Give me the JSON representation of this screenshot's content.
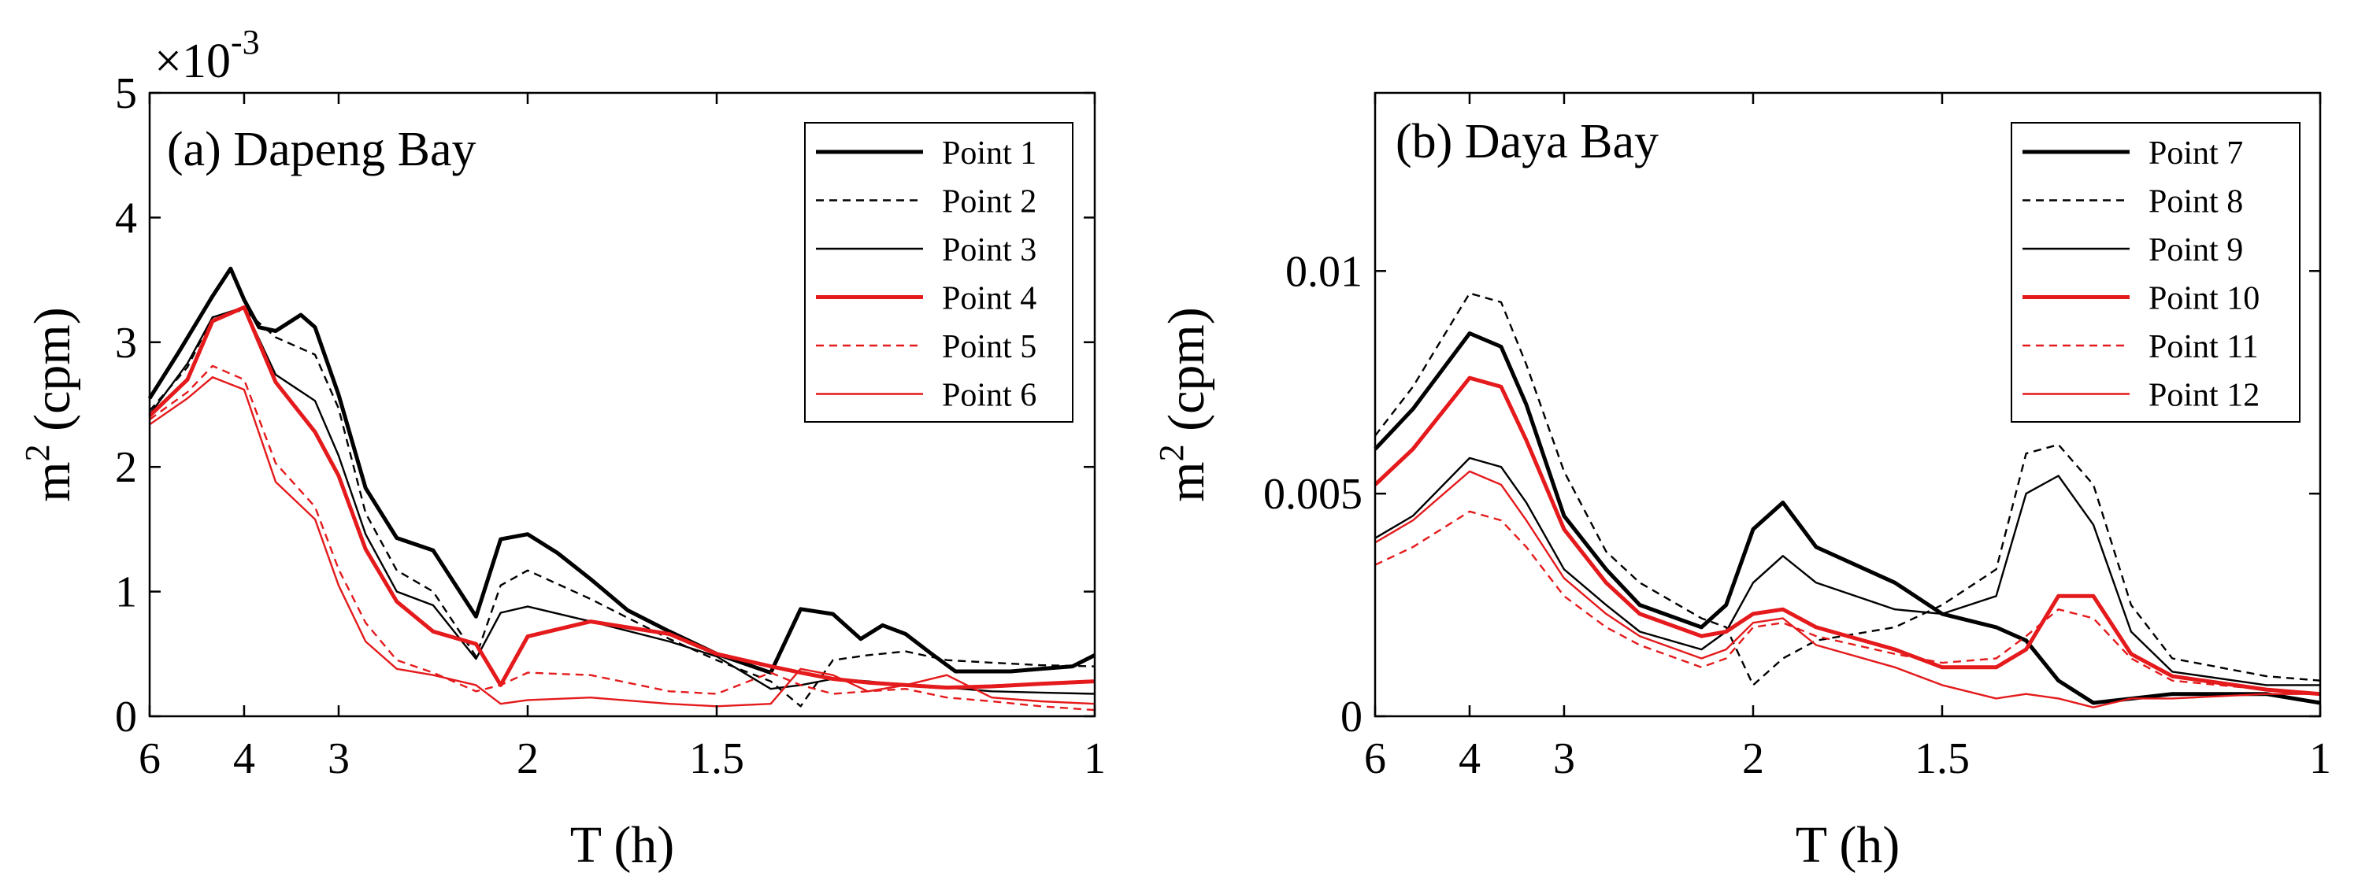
{
  "figure": {
    "background": "#ffffff"
  },
  "chart_data": [
    {
      "type": "line",
      "title": "(a) Dapeng Bay",
      "xlabel": "T (h)",
      "ylabel_base": "m",
      "ylabel_sup": "2",
      "ylabel_unit": " (cpm)",
      "xscale": "frequency (1/T)",
      "xlim_frequency_per_h": [
        0.1667,
        1.0
      ],
      "xticks": [
        {
          "period_h": 6,
          "label": "6"
        },
        {
          "period_h": 4,
          "label": "4"
        },
        {
          "period_h": 3,
          "label": "3"
        },
        {
          "period_h": 2,
          "label": "2"
        },
        {
          "period_h": 1.5,
          "label": "1.5"
        },
        {
          "period_h": 1,
          "label": "1"
        }
      ],
      "ylim": [
        0,
        0.005
      ],
      "yticks": [
        {
          "value": 0,
          "label": "0"
        },
        {
          "value": 0.001,
          "label": "1"
        },
        {
          "value": 0.002,
          "label": "2"
        },
        {
          "value": 0.003,
          "label": "3"
        },
        {
          "value": 0.004,
          "label": "4"
        },
        {
          "value": 0.005,
          "label": "5"
        }
      ],
      "y_multiplier_base": "×10",
      "y_multiplier_exp": "-3",
      "legend_position": "top-right",
      "series": [
        {
          "name": "Point 1",
          "color": "#000000",
          "style": "solid",
          "weight": "thick",
          "x": [
            0.1667,
            0.1923,
            0.2222,
            0.2381,
            0.25,
            0.2632,
            0.2778,
            0.3,
            0.3125,
            0.3333,
            0.3571,
            0.3846,
            0.4167,
            0.4545,
            0.4762,
            0.5,
            0.5263,
            0.5556,
            0.5882,
            0.625,
            0.6667,
            0.7143,
            0.7407,
            0.7692,
            0.7937,
            0.813,
            0.8333,
            0.8547,
            0.8772,
            0.9009,
            0.9259,
            0.9524,
            0.9804,
            1.0
          ],
          "y": [
            0.00255,
            0.00292,
            0.00337,
            0.00359,
            0.00334,
            0.00312,
            0.00309,
            0.00322,
            0.00312,
            0.00258,
            0.00183,
            0.00143,
            0.00133,
            0.0008,
            0.00142,
            0.00146,
            0.00131,
            0.0011,
            0.00085,
            0.00068,
            0.0005,
            0.00035,
            0.00086,
            0.00082,
            0.00062,
            0.00073,
            0.00066,
            0.00051,
            0.00036,
            0.00036,
            0.00036,
            0.00038,
            0.0004,
            0.00049
          ]
        },
        {
          "name": "Point 2",
          "color": "#000000",
          "style": "dashed",
          "weight": "thin",
          "x": [
            0.1667,
            0.2,
            0.2222,
            0.25,
            0.2778,
            0.3125,
            0.3333,
            0.3571,
            0.3846,
            0.4167,
            0.4545,
            0.4762,
            0.5,
            0.5556,
            0.625,
            0.6667,
            0.7143,
            0.7407,
            0.7692,
            0.8,
            0.8333,
            0.8696,
            0.9091,
            0.9524,
            1.0
          ],
          "y": [
            0.00245,
            0.0028,
            0.0032,
            0.00326,
            0.00304,
            0.0029,
            0.00247,
            0.00163,
            0.00117,
            0.001,
            0.00048,
            0.00105,
            0.00117,
            0.00094,
            0.00062,
            0.00045,
            0.00028,
            8e-05,
            0.00045,
            0.00049,
            0.00052,
            0.00045,
            0.00043,
            0.00041,
            0.0004
          ]
        },
        {
          "name": "Point 3",
          "color": "#000000",
          "style": "solid",
          "weight": "thin",
          "x": [
            0.1667,
            0.2,
            0.2222,
            0.25,
            0.2778,
            0.3125,
            0.3333,
            0.3571,
            0.3846,
            0.4167,
            0.4545,
            0.4762,
            0.5,
            0.5556,
            0.625,
            0.6667,
            0.7143,
            0.7407,
            0.7692,
            0.8,
            0.8333,
            0.8696,
            0.9091,
            0.9524,
            1.0
          ],
          "y": [
            0.00242,
            0.00283,
            0.0032,
            0.00328,
            0.00274,
            0.00253,
            0.00209,
            0.00146,
            0.001,
            0.00089,
            0.00046,
            0.00083,
            0.00088,
            0.00076,
            0.0006,
            0.00048,
            0.00022,
            0.00025,
            0.0003,
            0.00028,
            0.00025,
            0.00023,
            0.0002,
            0.00019,
            0.00018
          ]
        },
        {
          "name": "Point 4",
          "color": "#e41a1c",
          "style": "solid",
          "weight": "thick",
          "x": [
            0.1667,
            0.2,
            0.2222,
            0.25,
            0.2778,
            0.3125,
            0.3333,
            0.3571,
            0.3846,
            0.4167,
            0.4545,
            0.4762,
            0.5,
            0.5556,
            0.625,
            0.6667,
            0.7143,
            0.7407,
            0.7692,
            0.8,
            0.8333,
            0.8696,
            0.9091,
            0.9524,
            1.0
          ],
          "y": [
            0.00241,
            0.0027,
            0.00317,
            0.00328,
            0.00268,
            0.00228,
            0.00193,
            0.00134,
            0.00092,
            0.00068,
            0.00058,
            0.00025,
            0.00064,
            0.00076,
            0.00066,
            0.0005,
            0.0004,
            0.00035,
            0.0003,
            0.00027,
            0.00025,
            0.00023,
            0.00024,
            0.00026,
            0.00028
          ]
        },
        {
          "name": "Point 5",
          "color": "#e41a1c",
          "style": "dashed",
          "weight": "thin",
          "x": [
            0.1667,
            0.2,
            0.2222,
            0.25,
            0.2778,
            0.3125,
            0.3333,
            0.3571,
            0.3846,
            0.4167,
            0.4545,
            0.4762,
            0.5,
            0.5556,
            0.625,
            0.6667,
            0.7143,
            0.7407,
            0.7692,
            0.8,
            0.8333,
            0.8696,
            0.9091,
            0.9524,
            1.0
          ],
          "y": [
            0.00238,
            0.0026,
            0.00281,
            0.0027,
            0.00203,
            0.00168,
            0.00118,
            0.00075,
            0.00045,
            0.00035,
            0.0002,
            0.00025,
            0.00035,
            0.00033,
            0.0002,
            0.00018,
            0.00035,
            0.00025,
            0.00018,
            0.0002,
            0.00022,
            0.00015,
            0.00012,
            8e-05,
            5e-05
          ]
        },
        {
          "name": "Point 6",
          "color": "#e41a1c",
          "style": "solid",
          "weight": "thin",
          "x": [
            0.1667,
            0.2,
            0.2222,
            0.25,
            0.2778,
            0.3125,
            0.3333,
            0.3571,
            0.3846,
            0.4167,
            0.4545,
            0.4762,
            0.5,
            0.5556,
            0.625,
            0.6667,
            0.7143,
            0.7407,
            0.7692,
            0.8,
            0.8333,
            0.8696,
            0.9091,
            0.9524,
            1.0
          ],
          "y": [
            0.00234,
            0.00255,
            0.00272,
            0.00262,
            0.00188,
            0.00158,
            0.00105,
            0.0006,
            0.00038,
            0.00033,
            0.00025,
            0.0001,
            0.00013,
            0.00015,
            0.0001,
            8e-05,
            0.0001,
            0.00038,
            0.00033,
            0.0002,
            0.00025,
            0.00033,
            0.00015,
            0.00012,
            0.0001
          ]
        }
      ]
    },
    {
      "type": "line",
      "title": "(b) Daya Bay",
      "xlabel": "T (h)",
      "ylabel_base": "m",
      "ylabel_sup": "2",
      "ylabel_unit": " (cpm)",
      "xscale": "frequency (1/T)",
      "xlim_frequency_per_h": [
        0.1667,
        1.0
      ],
      "xticks": [
        {
          "period_h": 6,
          "label": "6"
        },
        {
          "period_h": 4,
          "label": "4"
        },
        {
          "period_h": 3,
          "label": "3"
        },
        {
          "period_h": 2,
          "label": "2"
        },
        {
          "period_h": 1.5,
          "label": "1.5"
        },
        {
          "period_h": 1,
          "label": "1"
        }
      ],
      "ylim": [
        0,
        0.014
      ],
      "yticks": [
        {
          "value": 0,
          "label": "0"
        },
        {
          "value": 0.005,
          "label": "0.005"
        },
        {
          "value": 0.01,
          "label": "0.01"
        }
      ],
      "legend_position": "top-right",
      "series": [
        {
          "name": "Point 7",
          "color": "#000000",
          "style": "solid",
          "weight": "thick",
          "x": [
            0.1667,
            0.2,
            0.25,
            0.2778,
            0.3,
            0.3333,
            0.3704,
            0.4,
            0.4545,
            0.4762,
            0.5,
            0.5263,
            0.5556,
            0.625,
            0.6667,
            0.7143,
            0.7407,
            0.7692,
            0.8,
            0.8696,
            0.9524,
            1.0
          ],
          "y": [
            0.006,
            0.0069,
            0.0086,
            0.0083,
            0.007,
            0.0045,
            0.0033,
            0.0025,
            0.002,
            0.0025,
            0.0042,
            0.0048,
            0.0038,
            0.003,
            0.0023,
            0.002,
            0.0017,
            0.0008,
            0.0003,
            0.0005,
            0.0005,
            0.0003
          ]
        },
        {
          "name": "Point 8",
          "color": "#000000",
          "style": "dashed",
          "weight": "thin",
          "x": [
            0.1667,
            0.2,
            0.25,
            0.2778,
            0.3,
            0.3333,
            0.3704,
            0.4,
            0.4545,
            0.4762,
            0.5,
            0.5263,
            0.5556,
            0.625,
            0.6667,
            0.7143,
            0.7407,
            0.7692,
            0.8,
            0.8333,
            0.8696,
            0.9524,
            1.0
          ],
          "y": [
            0.0063,
            0.0074,
            0.0095,
            0.0093,
            0.0079,
            0.0055,
            0.0037,
            0.003,
            0.0022,
            0.002,
            0.0007,
            0.0013,
            0.0017,
            0.002,
            0.0025,
            0.0033,
            0.0059,
            0.0061,
            0.0052,
            0.0025,
            0.0013,
            0.0009,
            0.0008
          ]
        },
        {
          "name": "Point 9",
          "color": "#000000",
          "style": "solid",
          "weight": "thin",
          "x": [
            0.1667,
            0.2,
            0.25,
            0.2778,
            0.3,
            0.3333,
            0.3704,
            0.4,
            0.4545,
            0.4762,
            0.5,
            0.5263,
            0.5556,
            0.625,
            0.6667,
            0.7143,
            0.7407,
            0.7692,
            0.8,
            0.8333,
            0.8696,
            0.9524,
            1.0
          ],
          "y": [
            0.004,
            0.0045,
            0.0058,
            0.0056,
            0.0048,
            0.0033,
            0.0025,
            0.0019,
            0.0015,
            0.0019,
            0.003,
            0.0036,
            0.003,
            0.0024,
            0.0023,
            0.0027,
            0.005,
            0.0054,
            0.0043,
            0.0019,
            0.001,
            0.0007,
            0.0007
          ]
        },
        {
          "name": "Point 10",
          "color": "#e41a1c",
          "style": "solid",
          "weight": "thick",
          "x": [
            0.1667,
            0.2,
            0.25,
            0.2778,
            0.3,
            0.3333,
            0.3704,
            0.4,
            0.4545,
            0.4762,
            0.5,
            0.5263,
            0.5556,
            0.625,
            0.6667,
            0.7143,
            0.7407,
            0.7692,
            0.8,
            0.8333,
            0.8696,
            0.9524,
            1.0
          ],
          "y": [
            0.0052,
            0.006,
            0.0076,
            0.0074,
            0.0062,
            0.0042,
            0.003,
            0.0023,
            0.0018,
            0.0019,
            0.0023,
            0.0024,
            0.002,
            0.0015,
            0.0011,
            0.0011,
            0.0015,
            0.0027,
            0.0027,
            0.0014,
            0.0009,
            0.0006,
            0.0005
          ]
        },
        {
          "name": "Point 11",
          "color": "#e41a1c",
          "style": "dashed",
          "weight": "thin",
          "x": [
            0.1667,
            0.2,
            0.25,
            0.2778,
            0.3,
            0.3333,
            0.3704,
            0.4,
            0.4545,
            0.4762,
            0.5,
            0.5263,
            0.5556,
            0.625,
            0.6667,
            0.7143,
            0.7407,
            0.7692,
            0.8,
            0.8333,
            0.8696,
            0.9524,
            1.0
          ],
          "y": [
            0.0034,
            0.0038,
            0.0046,
            0.0044,
            0.0038,
            0.0027,
            0.002,
            0.0016,
            0.0011,
            0.0013,
            0.002,
            0.0021,
            0.0018,
            0.0014,
            0.0012,
            0.0013,
            0.0018,
            0.0024,
            0.0022,
            0.0013,
            0.0008,
            0.0006,
            0.0005
          ]
        },
        {
          "name": "Point 12",
          "color": "#e41a1c",
          "style": "solid",
          "weight": "thin",
          "x": [
            0.1667,
            0.2,
            0.25,
            0.2778,
            0.3,
            0.3333,
            0.3704,
            0.4,
            0.4545,
            0.4762,
            0.5,
            0.5263,
            0.5556,
            0.625,
            0.6667,
            0.7143,
            0.7407,
            0.7692,
            0.8,
            0.8333,
            0.8696,
            0.9524,
            1.0
          ],
          "y": [
            0.0039,
            0.0044,
            0.0055,
            0.0052,
            0.0044,
            0.0031,
            0.0023,
            0.0018,
            0.0013,
            0.0015,
            0.0021,
            0.0022,
            0.0016,
            0.0011,
            0.0007,
            0.0004,
            0.0005,
            0.0004,
            0.0002,
            0.0004,
            0.0004,
            0.0005,
            0.0005
          ]
        }
      ]
    }
  ]
}
